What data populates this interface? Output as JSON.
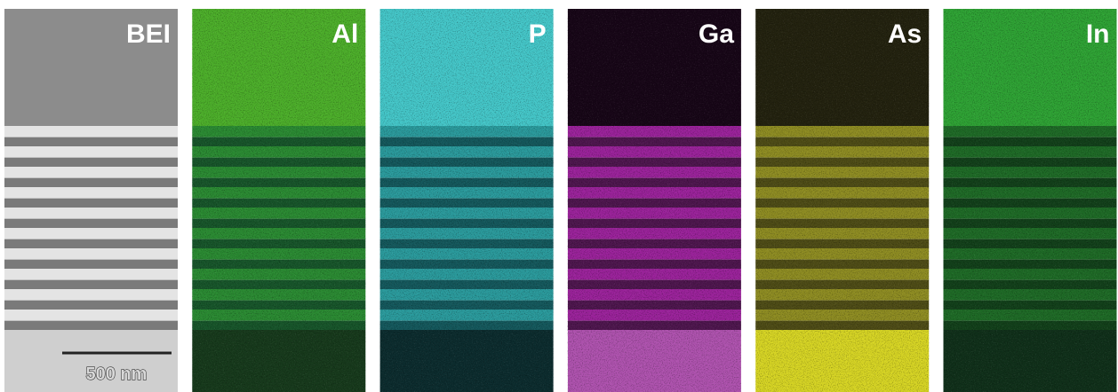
{
  "panels": [
    {
      "label": "BEI"
    },
    {
      "label": "Al"
    },
    {
      "label": "P"
    },
    {
      "label": "Ga"
    },
    {
      "label": "As"
    },
    {
      "label": "In"
    }
  ],
  "scale_bar": "500 nm"
}
